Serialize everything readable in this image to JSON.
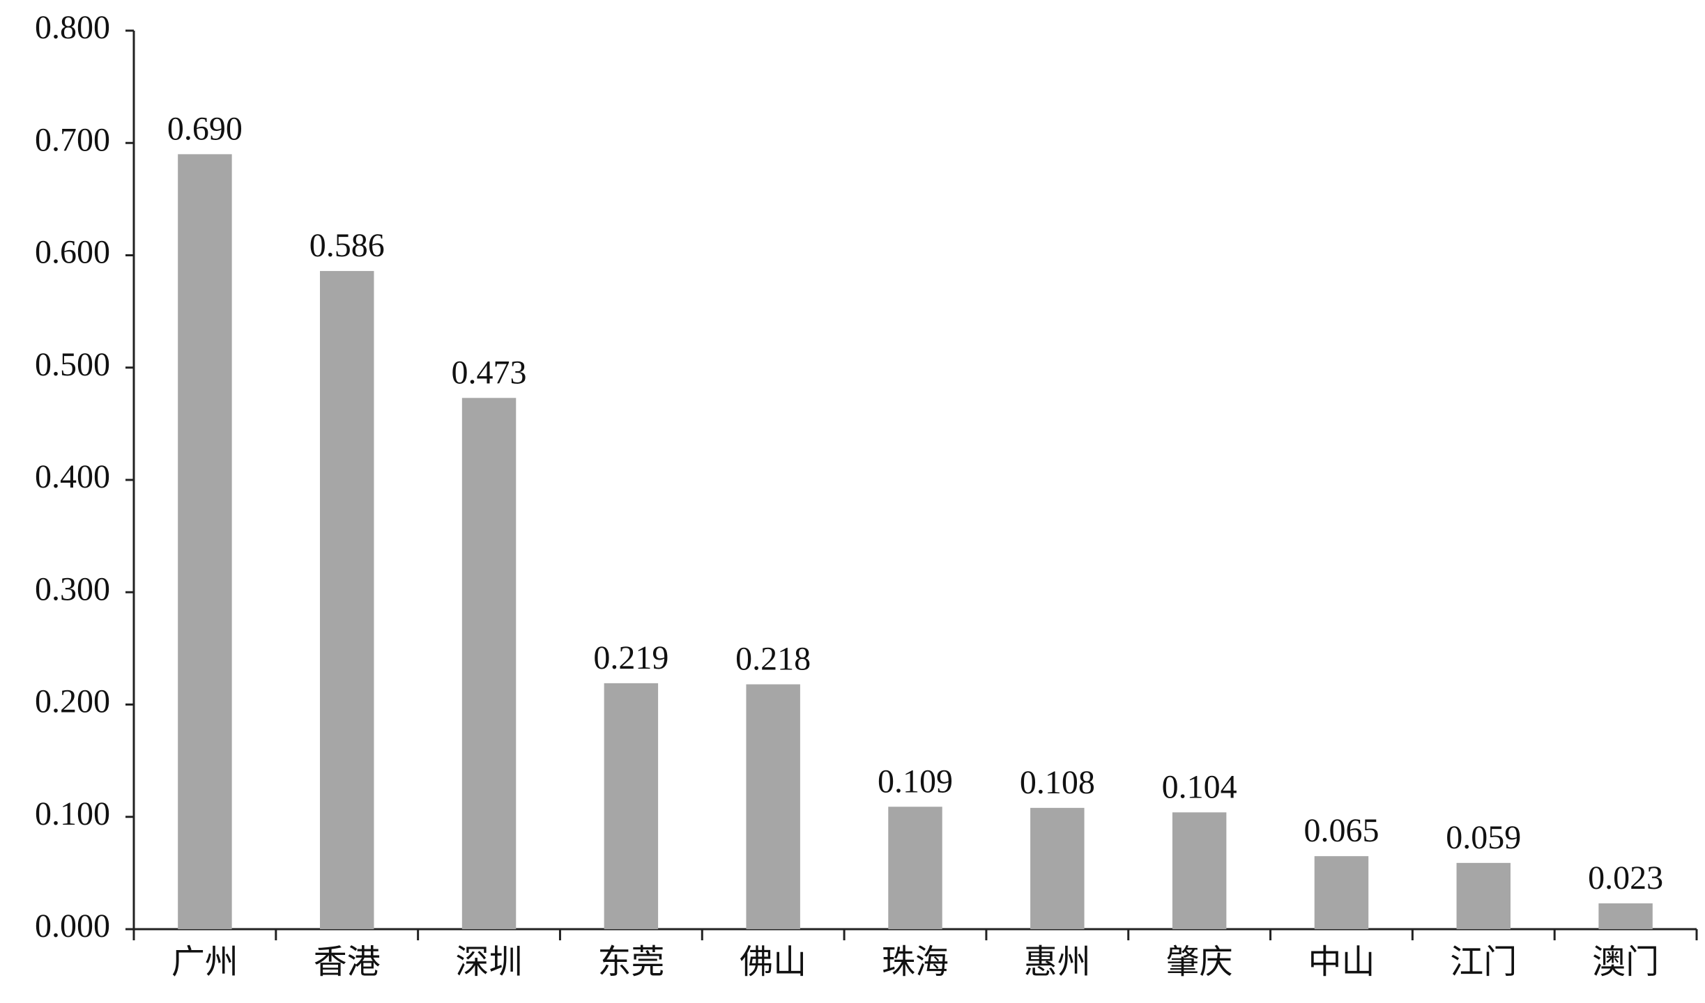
{
  "chart_data": {
    "type": "bar",
    "categories": [
      "广州",
      "香港",
      "深圳",
      "东莞",
      "佛山",
      "珠海",
      "惠州",
      "肇庆",
      "中山",
      "江门",
      "澳门"
    ],
    "values": [
      0.69,
      0.586,
      0.473,
      0.219,
      0.218,
      0.109,
      0.108,
      0.104,
      0.065,
      0.059,
      0.023
    ],
    "value_labels": [
      "0.690",
      "0.586",
      "0.473",
      "0.219",
      "0.218",
      "0.109",
      "0.108",
      "0.104",
      "0.065",
      "0.059",
      "0.023"
    ],
    "color": "#a6a6a6",
    "ylim": [
      0,
      0.8
    ],
    "yticks": [
      {
        "value": 0,
        "label": "0.000"
      },
      {
        "value": 0.1,
        "label": "0.100"
      },
      {
        "value": 0.2,
        "label": "0.200"
      },
      {
        "value": 0.3,
        "label": "0.300"
      },
      {
        "value": 0.4,
        "label": "0.400"
      },
      {
        "value": 0.5,
        "label": "0.500"
      },
      {
        "value": 0.6,
        "label": "0.600"
      },
      {
        "value": 0.7,
        "label": "0.700"
      },
      {
        "value": 0.8,
        "label": "0.800"
      }
    ],
    "grid": false
  }
}
